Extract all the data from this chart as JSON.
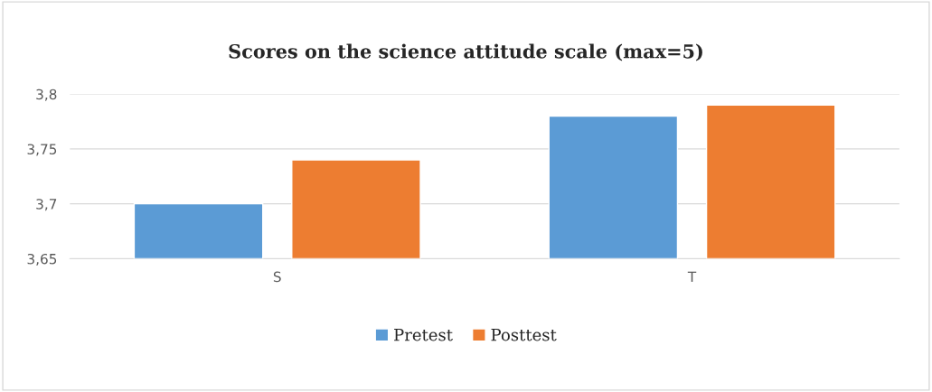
{
  "chart_data": {
    "type": "bar",
    "title": "Scores on the science attitude scale (max=5)",
    "categories": [
      "S",
      "T"
    ],
    "series": [
      {
        "name": "Pretest",
        "color": "#5b9bd5",
        "values": [
          3.7,
          3.78
        ]
      },
      {
        "name": "Posttest",
        "color": "#ed7d31",
        "values": [
          3.74,
          3.79
        ]
      }
    ],
    "ylim": [
      3.65,
      3.8
    ],
    "yticks": [
      {
        "value": 3.65,
        "label": "3,65"
      },
      {
        "value": 3.7,
        "label": "3,7"
      },
      {
        "value": 3.75,
        "label": "3,75"
      },
      {
        "value": 3.8,
        "label": "3,8"
      }
    ],
    "grid": "y",
    "legend": "bottom"
  }
}
